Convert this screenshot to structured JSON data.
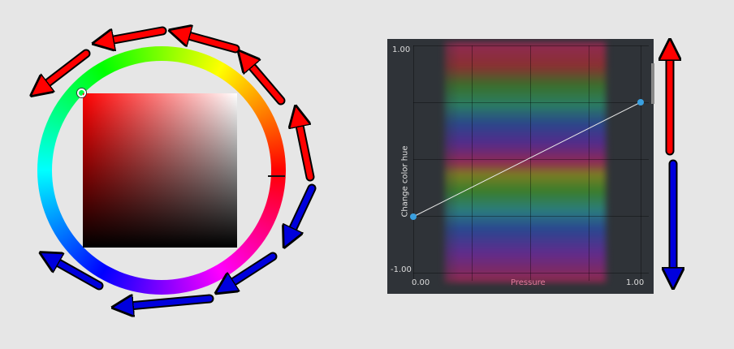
{
  "color_selector": {
    "hue_ring_colors": [
      "#ff0000",
      "#ff00ff",
      "#0000ff",
      "#00ffff",
      "#00ff00",
      "#ffff00"
    ],
    "selected_hue": "#ff0000"
  },
  "curve_editor": {
    "y_axis_label": "Change color hue",
    "x_axis_label": "Pressure",
    "y_max_label": "1.00",
    "y_min_label": "-1.00",
    "x_min_label": "0.00",
    "x_max_label": "1.00",
    "curve_color": "#e8e8e8",
    "handle_color": "#3aa0e0",
    "points": [
      [
        0.0,
        -0.45
      ],
      [
        1.0,
        0.5
      ]
    ]
  },
  "annotations": {
    "increase_arrow_color": "#ff0000",
    "decrease_arrow_color": "#0000dd"
  }
}
